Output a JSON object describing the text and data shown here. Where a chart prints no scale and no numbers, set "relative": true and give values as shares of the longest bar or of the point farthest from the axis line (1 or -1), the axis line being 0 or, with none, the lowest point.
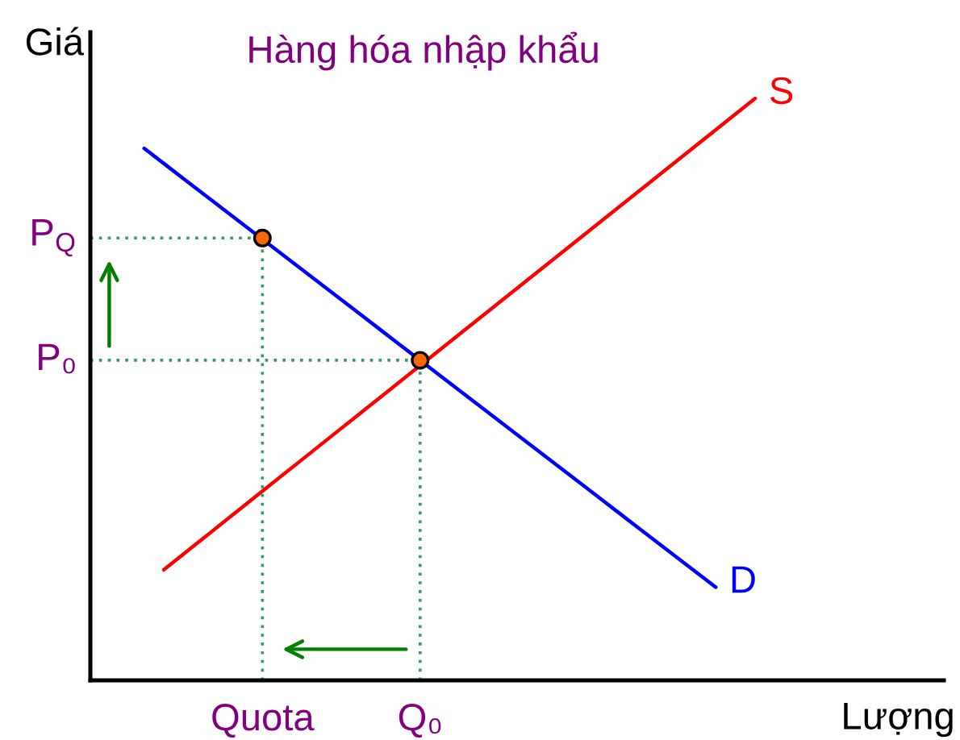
{
  "chart_data": {
    "type": "line",
    "title": "Hàng hóa nhập khẩu",
    "xlabel": "Lượng",
    "ylabel": "Giá",
    "relative": true,
    "categories": [
      null,
      null,
      null,
      null,
      null,
      null,
      null,
      null,
      "Quota",
      null,
      null,
      null,
      null,
      null,
      null,
      null,
      "Q₀",
      null,
      null,
      null,
      null,
      null,
      null,
      null,
      null,
      null,
      null,
      null,
      null,
      null,
      null,
      null,
      null,
      null,
      null,
      null,
      null,
      null,
      null,
      null,
      null,
      null,
      null
    ],
    "series": [
      {
        "name": "S",
        "color": "#ff0000",
        "values": [
          null,
          null,
          null,
          0.19,
          0.217,
          0.244,
          0.271,
          0.298,
          0.325,
          0.352,
          0.379,
          0.406,
          0.433,
          0.46,
          0.487,
          0.514,
          0.541,
          0.568,
          0.595,
          0.622,
          0.649,
          0.676,
          0.703,
          0.73,
          0.757,
          0.784,
          0.811,
          0.838,
          0.865,
          0.892,
          0.919,
          0.946,
          0.973,
          1.0,
          null,
          null,
          null,
          null,
          null,
          null,
          null,
          null,
          null
        ]
      },
      {
        "name": "D",
        "color": "#0000ff",
        "values": [
          null,
          null,
          0.914,
          0.888,
          0.862,
          0.836,
          0.81,
          0.784,
          0.758,
          0.732,
          0.706,
          0.68,
          0.654,
          0.628,
          0.602,
          0.576,
          0.55,
          0.524,
          0.498,
          0.472,
          0.446,
          0.42,
          0.394,
          0.368,
          0.342,
          0.316,
          0.29,
          0.264,
          0.238,
          0.212,
          0.186,
          0.16,
          null,
          null,
          null,
          null,
          null,
          null,
          null,
          null,
          null,
          null,
          null
        ]
      },
      {
        "type": "lollipop",
        "color": "#ff6600",
        "marker": "circle",
        "line_style": "dotted",
        "values": [
          null,
          null,
          null,
          null,
          null,
          null,
          null,
          null,
          0.76,
          null,
          null,
          null,
          null,
          null,
          null,
          null,
          0.55,
          null,
          null,
          null,
          null,
          null,
          null,
          null,
          null,
          null,
          null,
          null,
          null,
          null,
          null,
          null,
          null,
          null,
          null,
          null,
          null,
          null,
          null,
          null,
          null,
          null,
          null
        ]
      }
    ],
    "ref_lines": [
      {
        "axis": "y",
        "value": 0.76,
        "label": "P$_{Q}$",
        "color": "#339966",
        "line_style": "dotted"
      },
      {
        "axis": "y",
        "value": 0.55,
        "label": "P₀",
        "color": "#339966",
        "line_style": "dotted"
      }
    ]
  }
}
